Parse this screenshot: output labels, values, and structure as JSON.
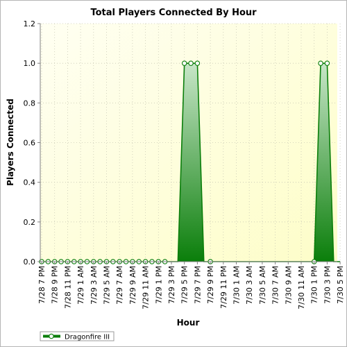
{
  "chart_data": {
    "type": "area",
    "title": "Total Players Connected By Hour",
    "xlabel": "Hour",
    "ylabel": "Players Connected",
    "ylim": [
      0,
      1.2
    ],
    "yticks": [
      "0.0",
      "0.2",
      "0.4",
      "0.6",
      "0.8",
      "1.0",
      "1.2"
    ],
    "grid": true,
    "legend_position": "bottom-left",
    "x": [
      "7/28 7 PM",
      "7/28 8 PM",
      "7/28 9 PM",
      "7/28 10 PM",
      "7/28 11 PM",
      "7/29 12 AM",
      "7/29 1 AM",
      "7/29 2 AM",
      "7/29 3 AM",
      "7/29 4 AM",
      "7/29 5 AM",
      "7/29 6 AM",
      "7/29 7 AM",
      "7/29 8 AM",
      "7/29 9 AM",
      "7/29 10 AM",
      "7/29 11 AM",
      "7/29 12 PM",
      "7/29 1 PM",
      "7/29 2 PM",
      "7/29 3 PM",
      "7/29 4 PM",
      "7/29 5 PM",
      "7/29 6 PM",
      "7/29 7 PM",
      "7/29 8 PM",
      "7/29 9 PM",
      "7/29 10 PM",
      "7/29 11 PM",
      "7/30 12 AM",
      "7/30 1 AM",
      "7/30 2 AM",
      "7/30 3 AM",
      "7/30 4 AM",
      "7/30 5 AM",
      "7/30 6 AM",
      "7/30 7 AM",
      "7/30 8 AM",
      "7/30 9 AM",
      "7/30 10 AM",
      "7/30 11 AM",
      "7/30 12 PM",
      "7/30 1 PM",
      "7/30 2 PM",
      "7/30 3 PM",
      "7/30 4 PM",
      "7/30 5 PM"
    ],
    "x_tick_labels": [
      "7/28 7 PM",
      "7/28 9 PM",
      "7/28 11 PM",
      "7/29 1 AM",
      "7/29 3 AM",
      "7/29 5 AM",
      "7/29 7 AM",
      "7/29 9 AM",
      "7/29 11 AM",
      "7/29 1 PM",
      "7/29 3 PM",
      "7/29 5 PM",
      "7/29 7 PM",
      "7/29 9 PM",
      "7/29 11 PM",
      "7/30 1 AM",
      "7/30 3 AM",
      "7/30 5 AM",
      "7/30 7 AM",
      "7/30 9 AM",
      "7/30 11 AM",
      "7/30 1 PM",
      "7/30 3 PM",
      "7/30 5 PM"
    ],
    "series": [
      {
        "name": "Dragonfire III",
        "color": "#0a7e0a",
        "values": [
          0,
          0,
          0,
          0,
          0,
          0,
          0,
          0,
          0,
          0,
          0,
          0,
          0,
          0,
          0,
          0,
          0,
          0,
          0,
          0,
          0,
          0,
          1,
          1,
          1,
          0,
          0,
          0,
          0,
          0,
          0,
          0,
          0,
          0,
          0,
          0,
          0,
          0,
          0,
          0,
          0,
          0,
          0,
          1,
          1,
          0,
          0
        ],
        "markers": [
          0,
          1,
          2,
          3,
          4,
          5,
          6,
          7,
          8,
          9,
          10,
          11,
          12,
          13,
          14,
          15,
          16,
          17,
          18,
          19,
          22,
          23,
          24,
          26,
          42,
          43,
          44
        ]
      }
    ]
  }
}
